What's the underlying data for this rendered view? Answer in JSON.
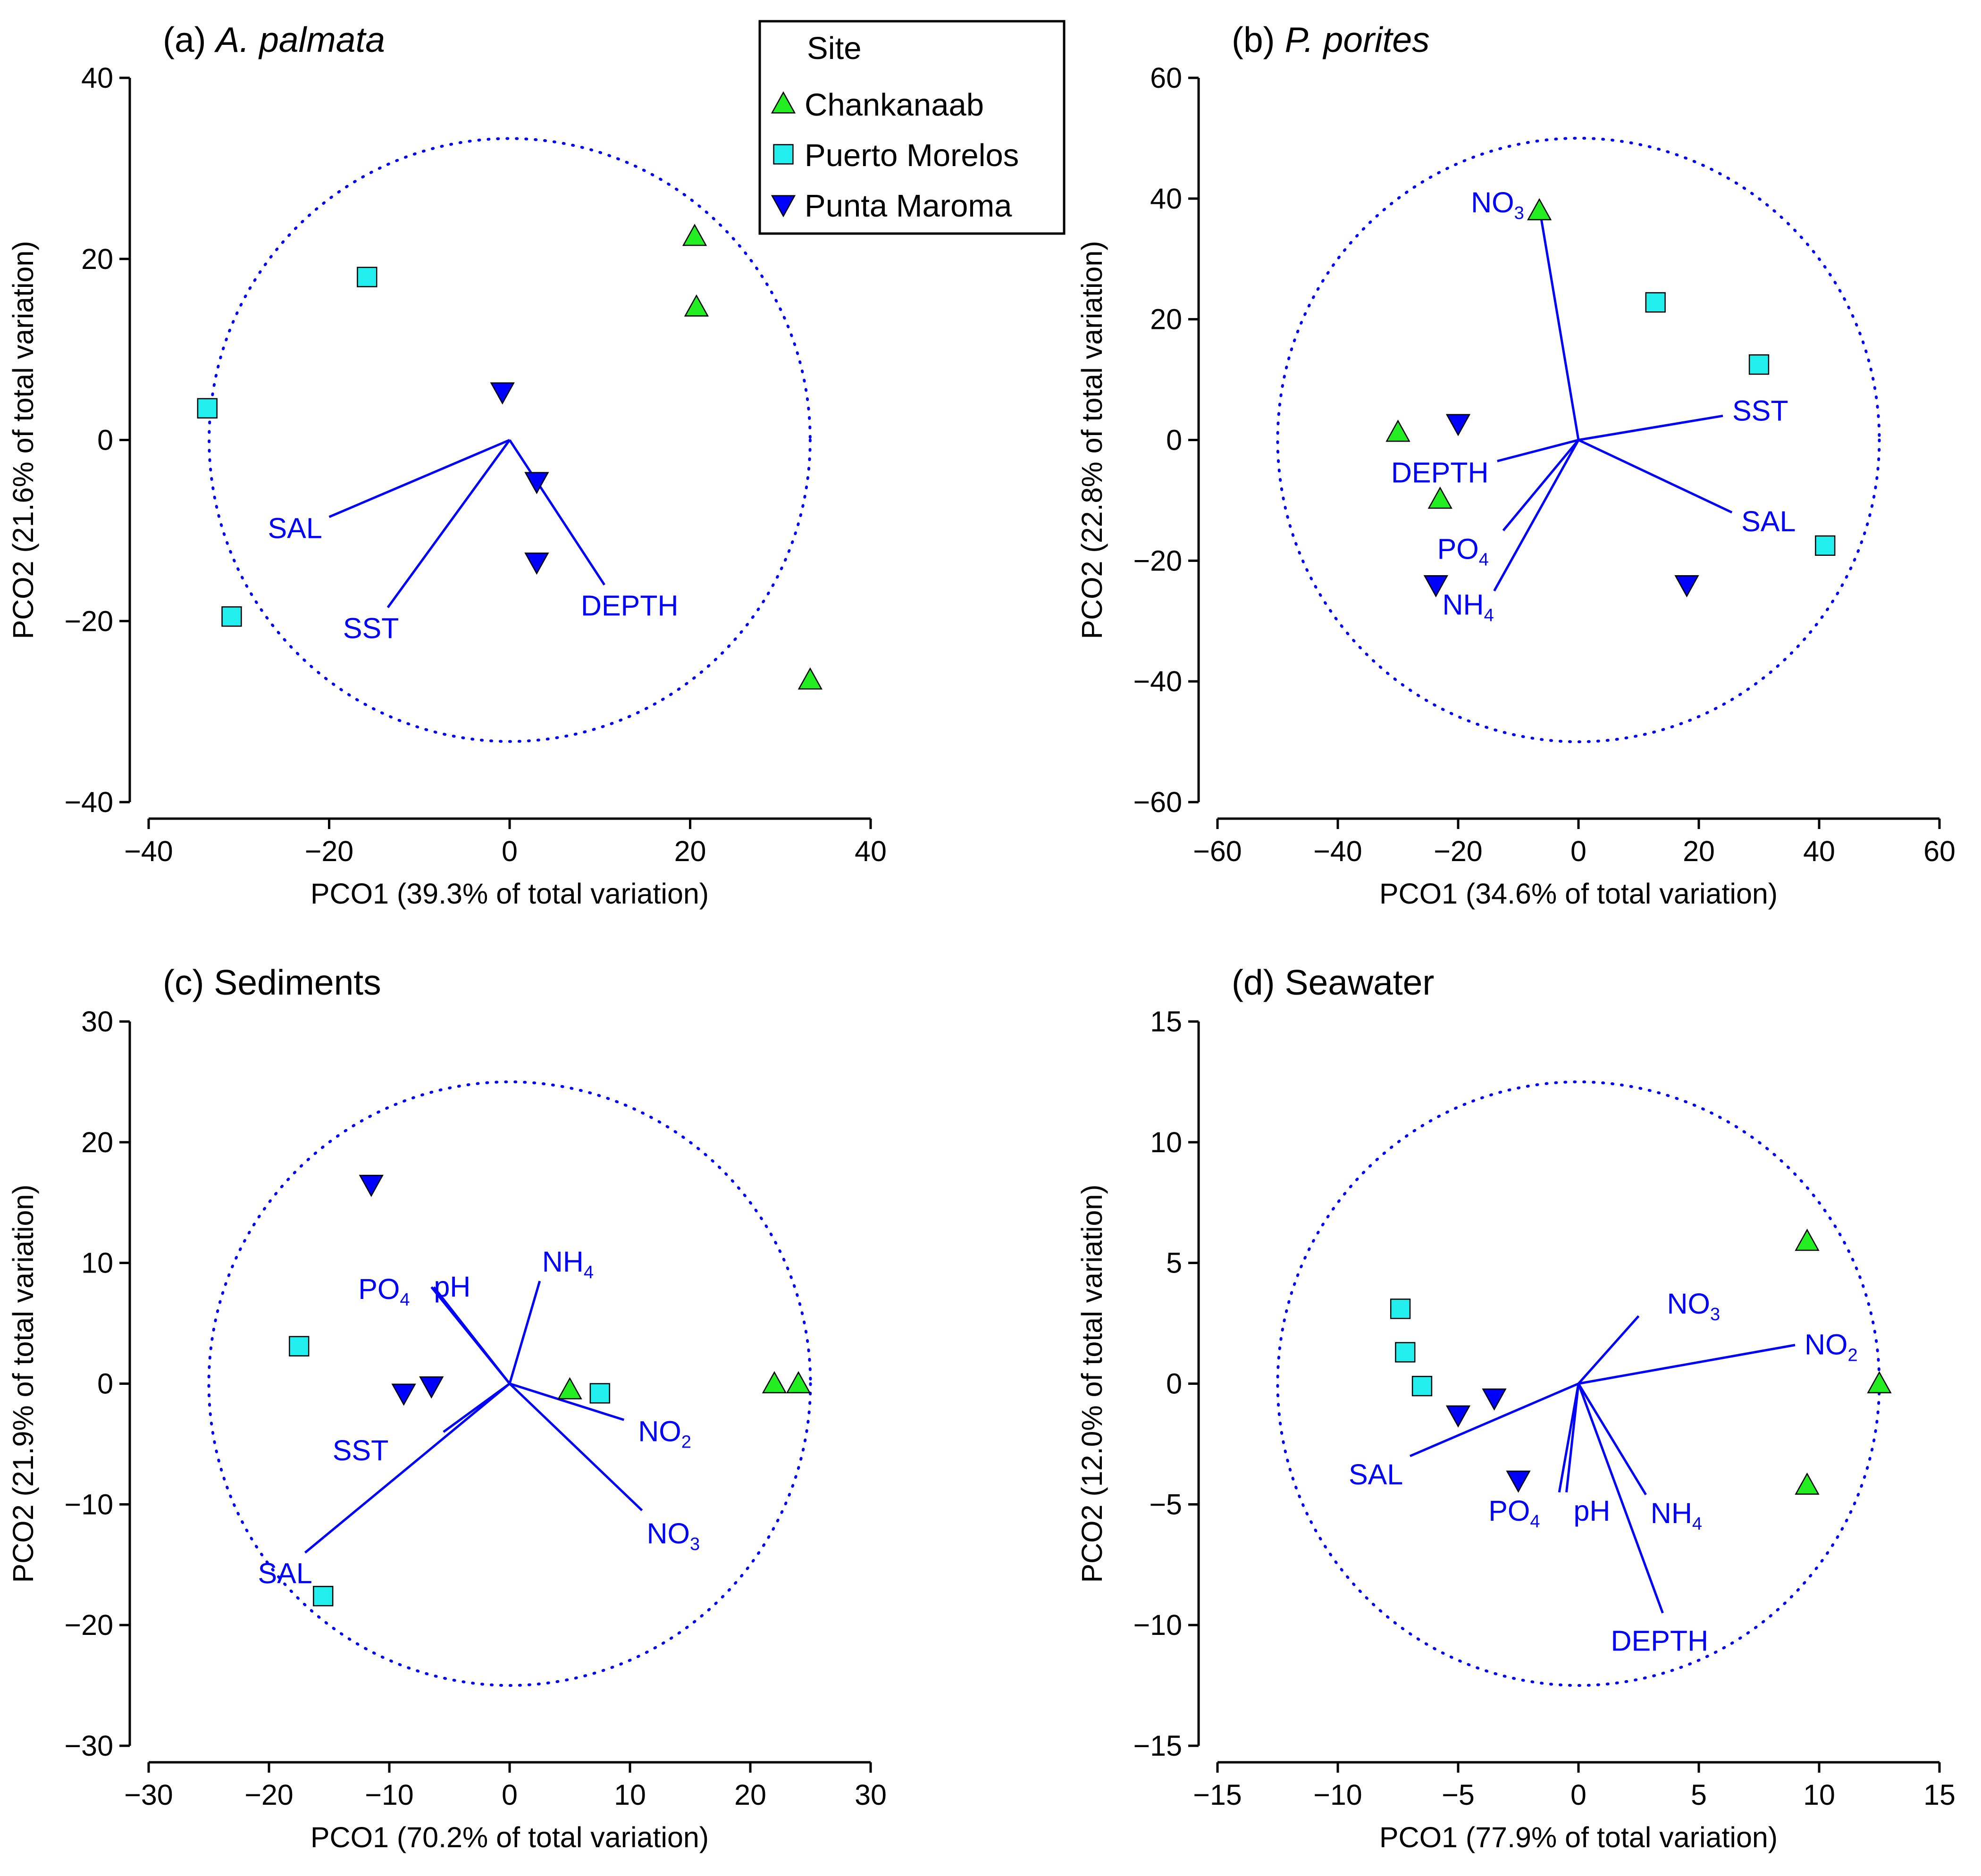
{
  "colors": {
    "Chankanaab": "#22ee22",
    "Puerto Morelos": "#22eeee",
    "Punta Maroma": "#0000ff",
    "vectors": "#0000ff"
  },
  "legend": {
    "title": "Site",
    "entries": [
      {
        "name": "Chankanaab",
        "marker": "triangle-up"
      },
      {
        "name": "Puerto Morelos",
        "marker": "square"
      },
      {
        "name": "Punta Maroma",
        "marker": "triangle-down"
      }
    ]
  },
  "chart_data": [
    {
      "type": "scatter",
      "title_prefix": "(a) ",
      "title_main": "A. palmata",
      "title_italic": true,
      "xlabel": "PCO1 (39.3% of total variation)",
      "ylabel": "PCO2 (21.6% of total variation)",
      "xlim": [
        -40,
        40
      ],
      "ylim": [
        -40,
        40
      ],
      "xticks": [
        -40,
        -20,
        0,
        20,
        40
      ],
      "yticks": [
        -40,
        -20,
        0,
        20,
        40
      ],
      "circle_radius": 33.3,
      "points": [
        {
          "site": "Chankanaab",
          "x": 20.5,
          "y": 22.5
        },
        {
          "site": "Chankanaab",
          "x": 20.7,
          "y": 14.7
        },
        {
          "site": "Chankanaab",
          "x": 33.3,
          "y": -26.5
        },
        {
          "site": "Puerto Morelos",
          "x": -15.8,
          "y": 18.0
        },
        {
          "site": "Puerto Morelos",
          "x": -33.5,
          "y": 3.5
        },
        {
          "site": "Puerto Morelos",
          "x": -30.8,
          "y": -19.5
        },
        {
          "site": "Punta Maroma",
          "x": -0.8,
          "y": 5.3
        },
        {
          "site": "Punta Maroma",
          "x": 3.0,
          "y": -4.6
        },
        {
          "site": "Punta Maroma",
          "x": 3.0,
          "y": -13.5
        }
      ],
      "vectors": [
        {
          "name": "SAL",
          "sub": "",
          "x": -20.0,
          "y": -8.5
        },
        {
          "name": "SST",
          "sub": "",
          "x": -13.5,
          "y": -18.5
        },
        {
          "name": "DEPTH",
          "sub": "",
          "x": 10.5,
          "y": -16.0
        }
      ]
    },
    {
      "type": "scatter",
      "title_prefix": "(b) ",
      "title_main": "P. porites",
      "title_italic": true,
      "xlabel": "PCO1 (34.6% of total variation)",
      "ylabel": "PCO2 (22.8% of total variation)",
      "xlim": [
        -60,
        60
      ],
      "ylim": [
        -60,
        60
      ],
      "xticks": [
        -60,
        -40,
        -20,
        0,
        20,
        40,
        60
      ],
      "yticks": [
        -60,
        -40,
        -20,
        0,
        20,
        40,
        60
      ],
      "circle_radius": 50,
      "points": [
        {
          "site": "Chankanaab",
          "x": -6.5,
          "y": 38.0
        },
        {
          "site": "Chankanaab",
          "x": -30.0,
          "y": 1.3
        },
        {
          "site": "Chankanaab",
          "x": -23.0,
          "y": -9.8
        },
        {
          "site": "Puerto Morelos",
          "x": 12.8,
          "y": 22.8
        },
        {
          "site": "Puerto Morelos",
          "x": 30.0,
          "y": 12.5
        },
        {
          "site": "Puerto Morelos",
          "x": 41.0,
          "y": -17.5
        },
        {
          "site": "Punta Maroma",
          "x": -20.0,
          "y": 2.7
        },
        {
          "site": "Punta Maroma",
          "x": -23.7,
          "y": -24.0
        },
        {
          "site": "Punta Maroma",
          "x": 18.0,
          "y": -24.0
        }
      ],
      "vectors": [
        {
          "name": "NO",
          "sub": "3",
          "x": -6.5,
          "y": 38.5
        },
        {
          "name": "SST",
          "sub": "",
          "x": 24.0,
          "y": 4.0
        },
        {
          "name": "SAL",
          "sub": "",
          "x": 25.5,
          "y": -12.0
        },
        {
          "name": "DEPTH",
          "sub": "",
          "x": -13.5,
          "y": -3.5
        },
        {
          "name": "PO",
          "sub": "4",
          "x": -12.5,
          "y": -15.0
        },
        {
          "name": "NH",
          "sub": "4",
          "x": -14.0,
          "y": -25.0
        }
      ]
    },
    {
      "type": "scatter",
      "title_prefix": "(c) ",
      "title_main": "Sediments",
      "title_italic": false,
      "xlabel": "PCO1 (70.2% of total variation)",
      "ylabel": "PCO2 (21.9% of total variation)",
      "xlim": [
        -30,
        30
      ],
      "ylim": [
        -30,
        30
      ],
      "xticks": [
        -30,
        -20,
        -10,
        0,
        10,
        20,
        30
      ],
      "yticks": [
        -30,
        -20,
        -10,
        0,
        10,
        20,
        30
      ],
      "circle_radius": 25,
      "points": [
        {
          "site": "Chankanaab",
          "x": 5.0,
          "y": -0.5
        },
        {
          "site": "Chankanaab",
          "x": 22.0,
          "y": 0.0
        },
        {
          "site": "Chankanaab",
          "x": 24.0,
          "y": 0.0
        },
        {
          "site": "Puerto Morelos",
          "x": -17.5,
          "y": 3.1
        },
        {
          "site": "Puerto Morelos",
          "x": 7.5,
          "y": -0.8
        },
        {
          "site": "Puerto Morelos",
          "x": -15.5,
          "y": -17.6
        },
        {
          "site": "Punta Maroma",
          "x": -11.5,
          "y": 16.5
        },
        {
          "site": "Punta Maroma",
          "x": -8.8,
          "y": -0.8
        },
        {
          "site": "Punta Maroma",
          "x": -6.5,
          "y": -0.2
        }
      ],
      "vectors": [
        {
          "name": "PO",
          "sub": "4",
          "x": -6.5,
          "y": 8.0
        },
        {
          "name": "pH",
          "sub": "",
          "x": -6.3,
          "y": 8.0
        },
        {
          "name": "NH",
          "sub": "4",
          "x": 2.5,
          "y": 8.5
        },
        {
          "name": "NO",
          "sub": "2",
          "x": 9.5,
          "y": -3.0
        },
        {
          "name": "NO",
          "sub": "3",
          "x": 11.0,
          "y": -10.5
        },
        {
          "name": "SST",
          "sub": "",
          "x": -5.5,
          "y": -4.0
        },
        {
          "name": "SAL",
          "sub": "",
          "x": -17.0,
          "y": -14.0
        }
      ]
    },
    {
      "type": "scatter",
      "title_prefix": "(d) ",
      "title_main": "Seawater",
      "title_italic": false,
      "xlabel": "PCO1 (77.9% of total variation)",
      "ylabel": "PCO2 (12.0% of total variation)",
      "xlim": [
        -15,
        15
      ],
      "ylim": [
        -15,
        15
      ],
      "xticks": [
        -15,
        -10,
        -5,
        0,
        5,
        10,
        15
      ],
      "yticks": [
        -15,
        -10,
        -5,
        0,
        5,
        10,
        15
      ],
      "circle_radius": 12.5,
      "points": [
        {
          "site": "Chankanaab",
          "x": 9.5,
          "y": 5.9
        },
        {
          "site": "Chankanaab",
          "x": 12.5,
          "y": 0.0
        },
        {
          "site": "Chankanaab",
          "x": 9.5,
          "y": -4.2
        },
        {
          "site": "Puerto Morelos",
          "x": -7.4,
          "y": 3.1
        },
        {
          "site": "Puerto Morelos",
          "x": -7.2,
          "y": 1.3
        },
        {
          "site": "Puerto Morelos",
          "x": -6.5,
          "y": -0.1
        },
        {
          "site": "Punta Maroma",
          "x": -5.0,
          "y": -1.3
        },
        {
          "site": "Punta Maroma",
          "x": -3.5,
          "y": -0.6
        },
        {
          "site": "Punta Maroma",
          "x": -2.5,
          "y": -4.0
        }
      ],
      "vectors": [
        {
          "name": "NO",
          "sub": "3",
          "x": 2.5,
          "y": 2.8
        },
        {
          "name": "NO",
          "sub": "2",
          "x": 9.0,
          "y": 1.6
        },
        {
          "name": "SAL",
          "sub": "",
          "x": -7.0,
          "y": -3.0
        },
        {
          "name": "PO",
          "sub": "4",
          "x": -0.8,
          "y": -4.5
        },
        {
          "name": "pH",
          "sub": "",
          "x": -0.5,
          "y": -4.5
        },
        {
          "name": "NH",
          "sub": "4",
          "x": 2.8,
          "y": -4.6
        },
        {
          "name": "DEPTH",
          "sub": "",
          "x": 3.5,
          "y": -9.5
        }
      ]
    }
  ]
}
